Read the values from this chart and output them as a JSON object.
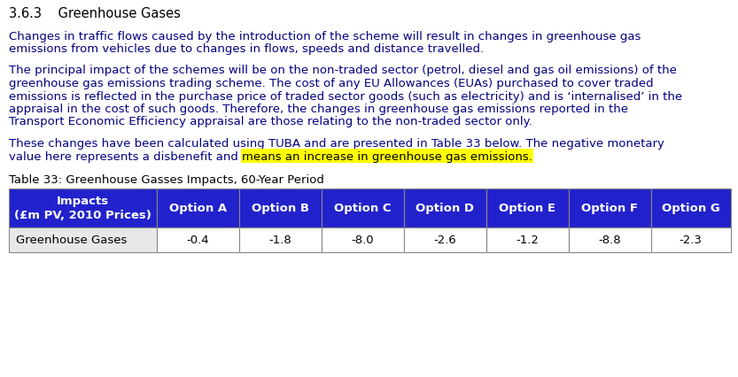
{
  "section_title": "3.6.3    Greenhouse Gases",
  "para1_line1": "Changes in traffic flows caused by the introduction of the scheme will result in changes in greenhouse gas",
  "para1_line2": "emissions from vehicles due to changes in flows, speeds and distance travelled.",
  "para2_line1": "The principal impact of the schemes will be on the non-traded sector (petrol, diesel and gas oil emissions) of the",
  "para2_line2": "greenhouse gas emissions trading scheme. The cost of any EU Allowances (EUAs) purchased to cover traded",
  "para2_line3": "emissions is reflected in the purchase price of traded sector goods (such as electricity) and is ‘internalised’ in the",
  "para2_line4": "appraisal in the cost of such goods. Therefore, the changes in greenhouse gas emissions reported in the",
  "para2_line5": "Transport Economic Efficiency appraisal are those relating to the non-traded sector only.",
  "para3_line1": "These changes have been calculated using TUBA and are presented in Table 33 below. The negative monetary",
  "para3_line2_before": "value here represents a disbenefit and ",
  "para3_line2_highlight": "means an increase in greenhouse gas emissions.",
  "table_caption": "Table 33: Greenhouse Gasses Impacts, 60-Year Period",
  "col_headers": [
    "Impacts\n(£m PV, 2010 Prices)",
    "Option A",
    "Option B",
    "Option C",
    "Option D",
    "Option E",
    "Option F",
    "Option G"
  ],
  "row_label": "Greenhouse Gases",
  "row_values": [
    "-0.4",
    "-1.8",
    "-8.0",
    "-2.6",
    "-1.2",
    "-8.8",
    "-2.3"
  ],
  "header_bg": "#2222CC",
  "header_text": "#FFFFFF",
  "row_label_bg": "#E8E8E8",
  "row_value_bg": "#FFFFFF",
  "border_color": "#888888",
  "body_text_color": "#000080",
  "highlight_bg": "#FFFF00",
  "background_color": "#FFFFFF",
  "title_color": "#000000",
  "body_fs": 9.5,
  "title_fs": 10.5,
  "caption_fs": 9.5,
  "table_header_fs": 9.5,
  "table_body_fs": 9.5
}
